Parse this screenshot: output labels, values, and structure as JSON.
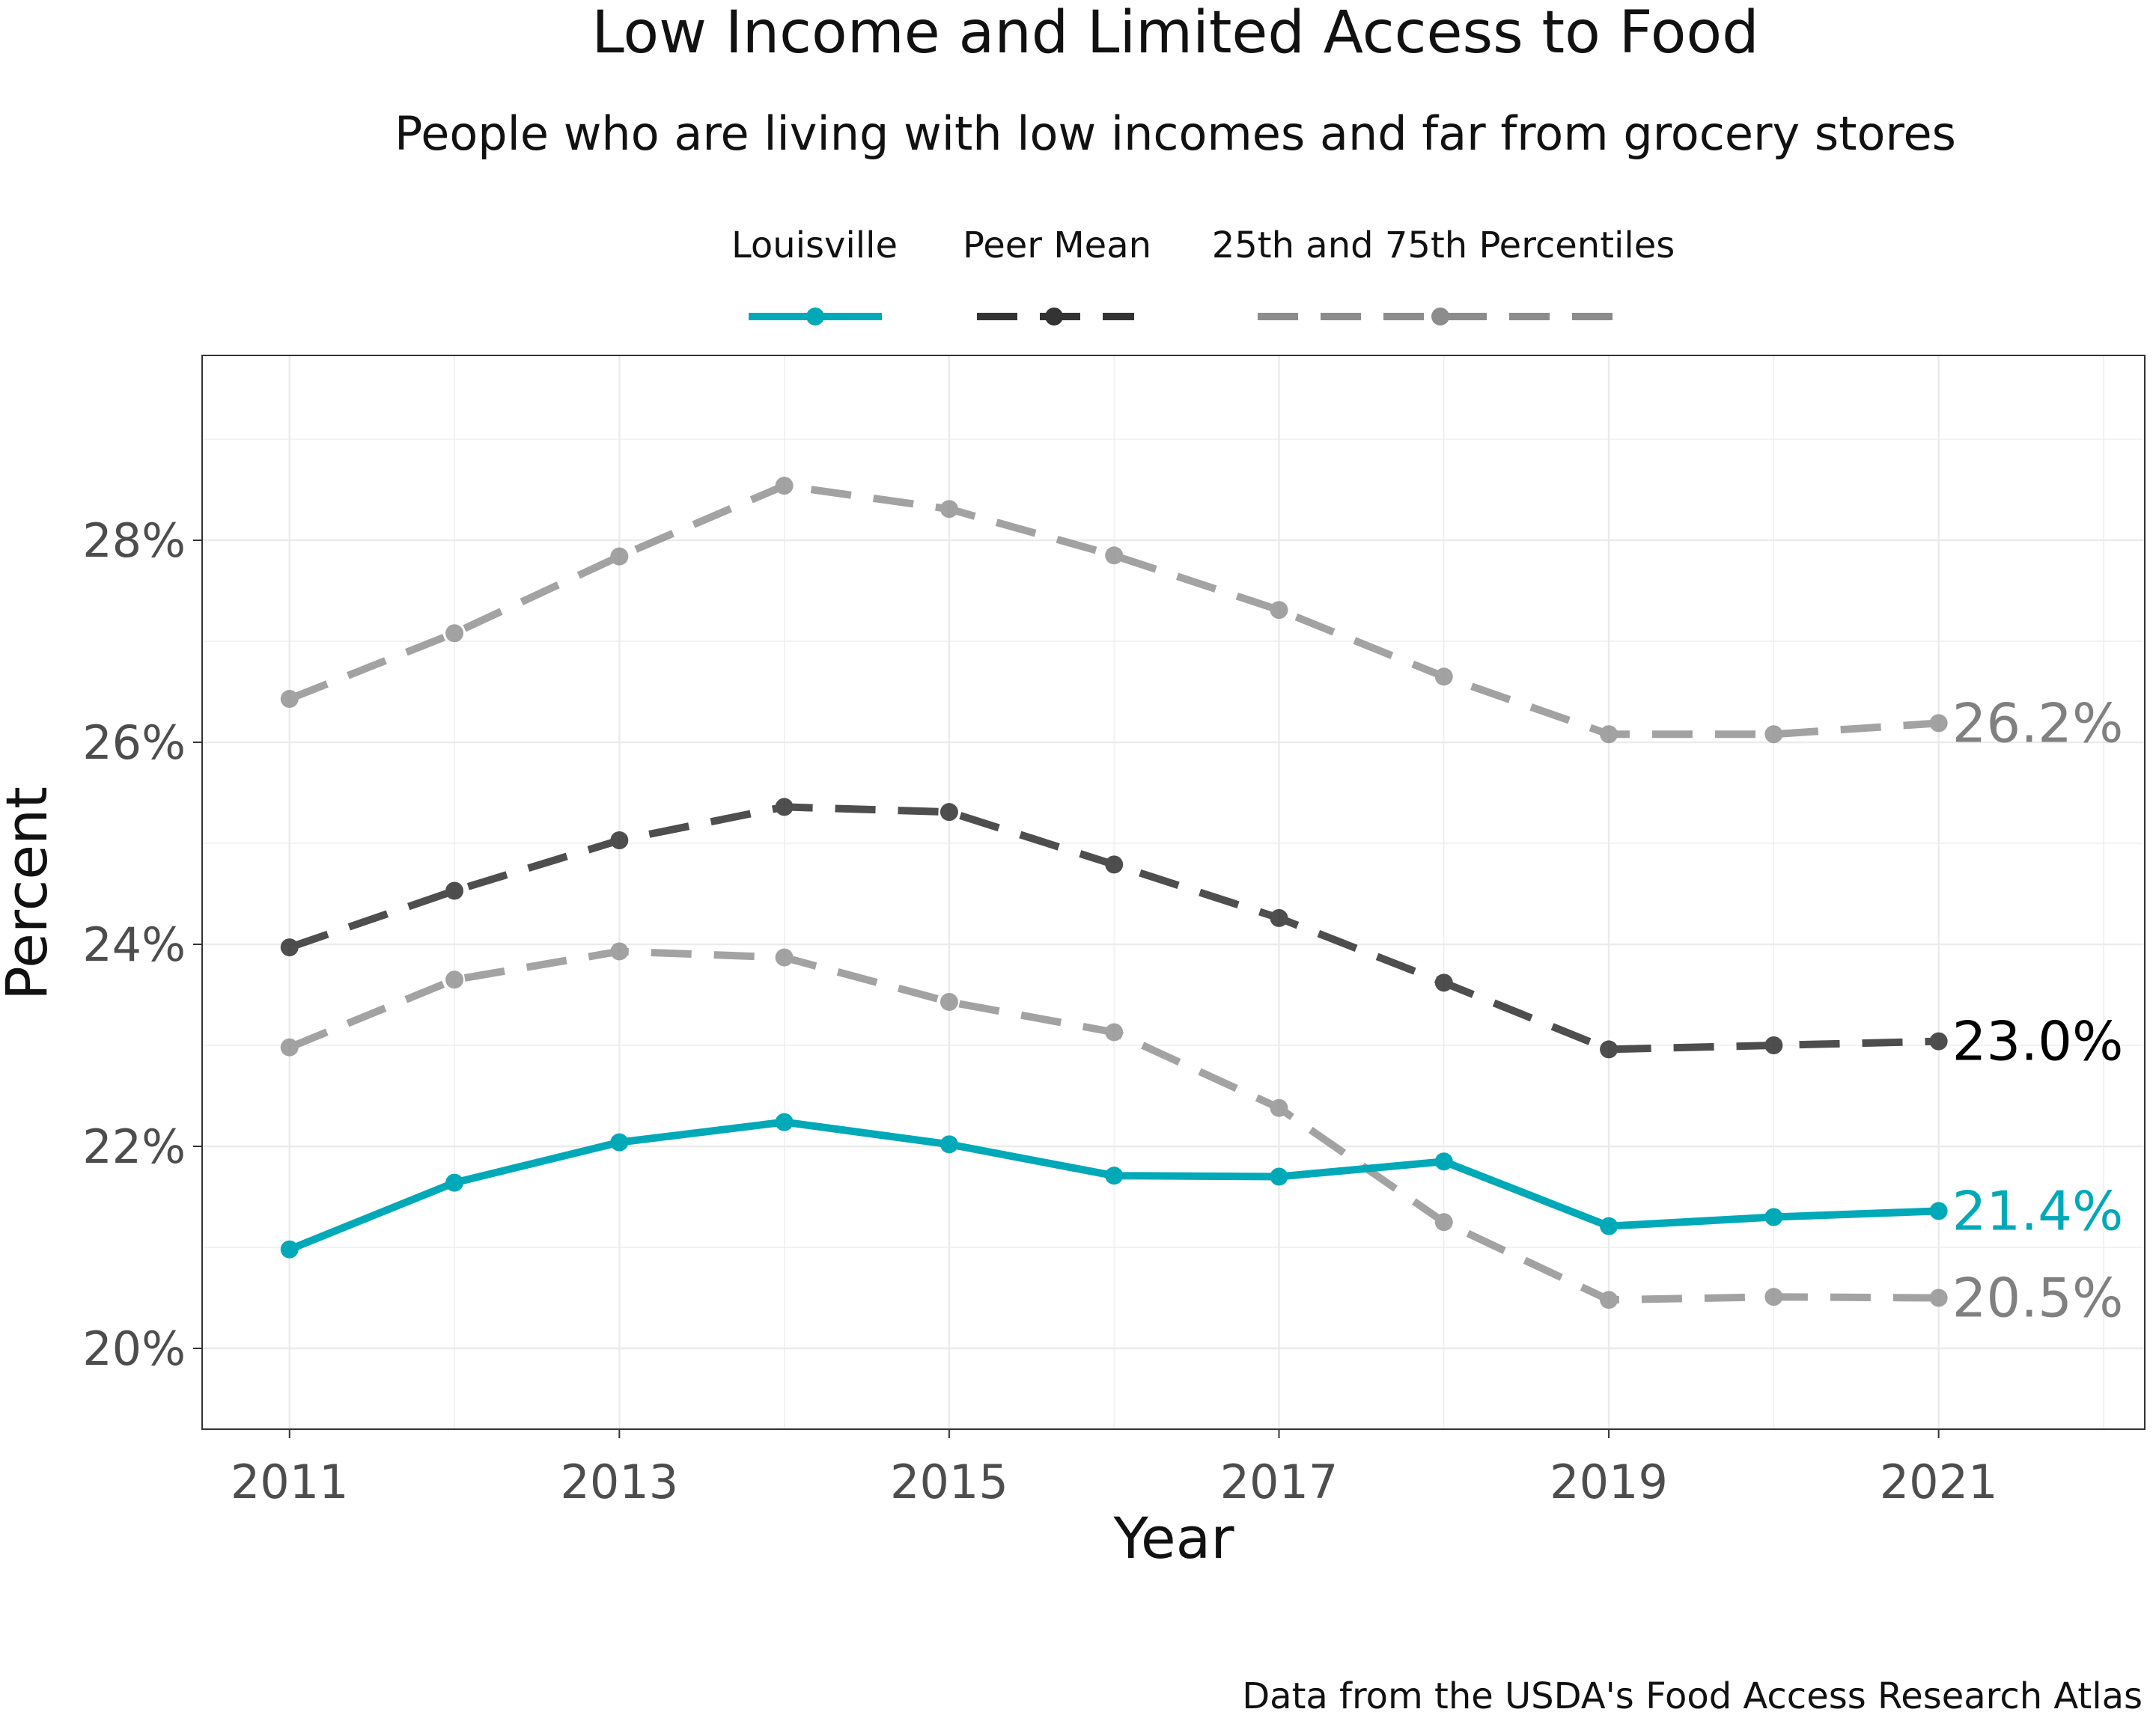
{
  "chart_data": {
    "type": "line",
    "title": "Low Income and Limited Access to Food",
    "subtitle": "People who are living with low incomes and far from grocery stores",
    "xlabel": "Year",
    "ylabel": "Percent",
    "caption": "Data from the USDA's Food Access Research Atlas",
    "x": [
      2011,
      2012,
      2013,
      2014,
      2015,
      2016,
      2017,
      2018,
      2019,
      2020,
      2021
    ],
    "xlim": [
      2010.47,
      2022.25
    ],
    "ylim": [
      19.2,
      29.83
    ],
    "x_ticks": [
      2011,
      2013,
      2015,
      2017,
      2019,
      2021
    ],
    "y_ticks": [
      20,
      22,
      24,
      26,
      28
    ],
    "y_tick_labels": [
      "20%",
      "22%",
      "24%",
      "26%",
      "28%"
    ],
    "grid": true,
    "legend_position": "top",
    "legend": [
      {
        "label": "Louisville",
        "color": "#00a9b7",
        "style": "solid",
        "key": "louisville"
      },
      {
        "label": "Peer Mean",
        "color": "#333333",
        "style": "dashed",
        "key": "peer"
      },
      {
        "label": "25th and 75th Percentiles",
        "color": "#8c8c8c",
        "style": "dashed",
        "key": "pct"
      }
    ],
    "series": [
      {
        "key": "p75",
        "group": "pct",
        "color": "#8c8c8c",
        "opacity": 0.8,
        "style": "dashed",
        "values": [
          26.43,
          27.08,
          27.84,
          28.54,
          28.31,
          27.85,
          27.31,
          26.65,
          26.08,
          26.08,
          26.19
        ],
        "end_label": "26.2%"
      },
      {
        "key": "peer",
        "group": "peer",
        "color": "#222222",
        "opacity": 0.8,
        "style": "dashed",
        "values": [
          23.97,
          24.53,
          25.03,
          25.36,
          25.31,
          24.79,
          24.26,
          23.62,
          22.96,
          23.0,
          23.04
        ],
        "end_label": "23.0%"
      },
      {
        "key": "p25",
        "group": "pct",
        "color": "#8c8c8c",
        "opacity": 0.8,
        "style": "dashed",
        "values": [
          22.98,
          23.65,
          23.93,
          23.87,
          23.43,
          23.13,
          22.38,
          21.25,
          20.48,
          20.51,
          20.5
        ],
        "end_label": "20.5%"
      },
      {
        "key": "louisville",
        "group": "louisville",
        "color": "#00a9b7",
        "opacity": 1,
        "style": "solid",
        "values": [
          20.98,
          21.64,
          22.04,
          22.24,
          22.02,
          21.71,
          21.7,
          21.85,
          21.21,
          21.3,
          21.36
        ],
        "end_label": "21.4%"
      }
    ],
    "end_label_colors": {
      "p75": "#808080",
      "peer": "#000000",
      "p25": "#808080",
      "louisville": "#00a9b7"
    }
  }
}
